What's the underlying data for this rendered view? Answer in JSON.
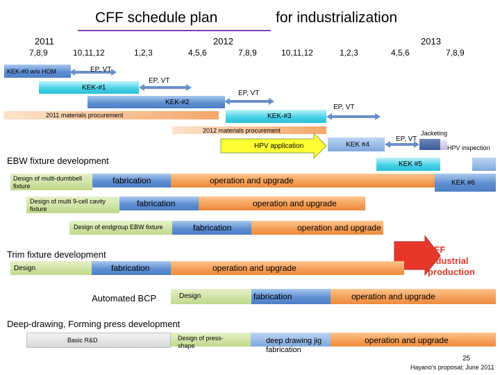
{
  "title": {
    "left": "CFF schedule plan",
    "right": "for industrialization"
  },
  "years": {
    "y2011": "2011",
    "y2012": "2012",
    "y2013": "2013"
  },
  "months": [
    "7,8,9",
    "10,11,12",
    "1,2,3",
    "4,5,6",
    "7,8,9",
    "10,11,12",
    "1,2,3",
    "4,5,6",
    "7,8,9"
  ],
  "kek": {
    "k0": "KEK-#0 w/o HOM",
    "k1": "KEK-#1",
    "k2": "KEK-#2",
    "k3": "KEK-#3",
    "k4": "KEK #4",
    "k5": "KEK #5",
    "k6": "KEK #6"
  },
  "epvt": {
    "a": "EP, VT",
    "b": "EP, VT",
    "c": "EP, VT",
    "d": "EP, VT",
    "e": "EP, VT"
  },
  "procurement": {
    "p2011": "2011 materials procurement",
    "p2012": "2012 materials procurement"
  },
  "hpv": {
    "application": "HPV application",
    "inspection": "HPV inspection",
    "jacketing": "Jacketing"
  },
  "ebw": {
    "heading": "EBW fixture development",
    "dumbbell_design": "Design of multi-dumbbell fixture",
    "dumbbell_fab": "fabrication",
    "dumbbell_op": "operation and upgrade",
    "cavity_design": "Design of multi 9-cell cavity fixture",
    "cavity_fab": "fabrication",
    "cavity_op": "operation and upgrade",
    "endgroup_design": "Design of endgroup EBW fixture",
    "endgroup_fab": "fabrication",
    "endgroup_op": "operation and upgrade"
  },
  "cff_production": "CFF industrial production",
  "trim": {
    "heading": "Trim fixture development",
    "design": "Design",
    "fab": "fabrication",
    "op": "operation and upgrade"
  },
  "bcp": {
    "heading": "Automated BCP",
    "design": "Design",
    "fab": "fabrication",
    "op": "operation and upgrade"
  },
  "deep": {
    "heading": "Deep-drawing, Forming press development",
    "basic": "Basic R&D",
    "design": "Design of press-shape",
    "fab": "deep drawing jig fabrication",
    "op": "operation and upgrade"
  },
  "footer": {
    "page": "25",
    "credit": "Hayano's proposal; June 2011"
  },
  "colors": {
    "underline": "#7b3fb5",
    "arrow_fill": "#ffff33",
    "arrow_stroke": "#86a84a",
    "red_arrow": "#e8372a"
  }
}
